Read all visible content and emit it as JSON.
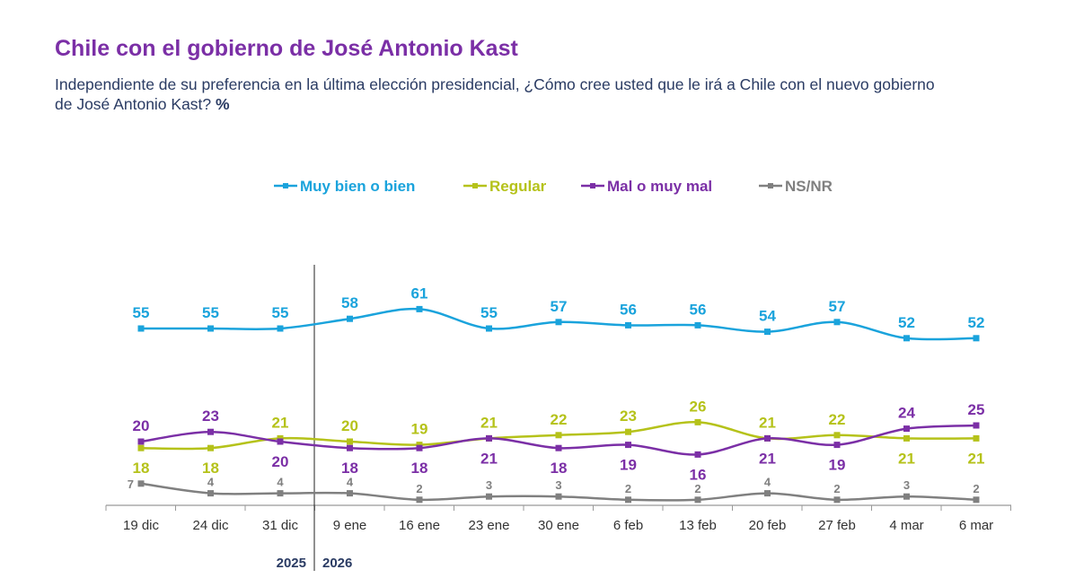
{
  "chart_data": {
    "type": "line",
    "title": "Chile con el gobierno de José Antonio Kast",
    "subtitle": "Independiente de su preferencia en la última elección presidencial, ¿Cómo cree usted que le irá a Chile con el nuevo gobierno de José Antonio Kast?",
    "subtitle_unit": "%",
    "categories": [
      "19 dic",
      "24 dic",
      "31 dic",
      "9 ene",
      "16 ene",
      "23 ene",
      "30 ene",
      "6 feb",
      "13 feb",
      "20 feb",
      "27 feb",
      "4 mar",
      "6 mar"
    ],
    "year_labels": [
      "2025",
      "2026"
    ],
    "legend_position": "top-center",
    "series": [
      {
        "name": "Muy bien o bien",
        "color": "#1aa3dc",
        "values": [
          55,
          55,
          55,
          58,
          61,
          55,
          57,
          56,
          56,
          54,
          57,
          52,
          52
        ],
        "label_side": [
          "a",
          "a",
          "a",
          "a",
          "a",
          "a",
          "a",
          "a",
          "a",
          "a",
          "a",
          "a",
          "a"
        ]
      },
      {
        "name": "Regular",
        "color": "#b5c21a",
        "values": [
          18,
          18,
          21,
          20,
          19,
          21,
          22,
          23,
          26,
          21,
          22,
          21,
          21
        ],
        "label_side": [
          "b",
          "b",
          "a",
          "a",
          "a",
          "a",
          "a",
          "a",
          "a",
          "a",
          "a",
          "b",
          "b"
        ]
      },
      {
        "name": "Mal o muy mal",
        "color": "#7b2fa6",
        "values": [
          20,
          23,
          20,
          18,
          18,
          21,
          18,
          19,
          16,
          21,
          19,
          24,
          25
        ],
        "label_side": [
          "a",
          "a",
          "b",
          "b",
          "b",
          "b",
          "b",
          "b",
          "b",
          "b",
          "b",
          "a",
          "a"
        ]
      },
      {
        "name": "NS/NR",
        "color": "#808080",
        "values": [
          7,
          4,
          4,
          4,
          2,
          3,
          3,
          2,
          2,
          4,
          2,
          3,
          2
        ],
        "label_side": [
          "a",
          "a",
          "a",
          "a",
          "a",
          "a",
          "a",
          "a",
          "a",
          "a",
          "a",
          "a",
          "a"
        ]
      }
    ]
  }
}
